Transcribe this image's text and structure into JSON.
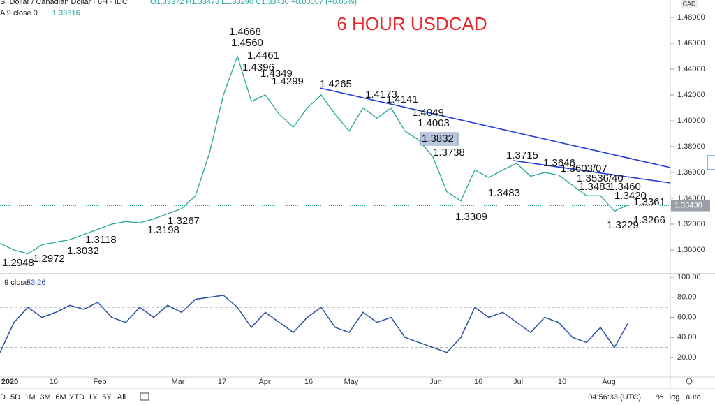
{
  "header": {
    "symbol": "S. Dollar / Canadian Dollar · 6H · IDC",
    "ohlc": "O1.33372 H1.33473 L1.33290 C1.33430 +0.00067 (+0.05%)",
    "indicator": "A 9 close 0",
    "indicator_value": "1.33316",
    "currency": "CAD"
  },
  "chart_data": [
    {
      "type": "line",
      "title": "6 HOUR USDCAD",
      "series": [
        {
          "color": "#26a69a",
          "values": [
            1.305,
            1.3,
            1.297,
            1.304,
            1.306,
            1.308,
            1.312,
            1.316,
            1.32,
            1.322,
            1.321,
            1.324,
            1.328,
            1.332,
            1.342,
            1.375,
            1.42,
            1.45,
            1.415,
            1.42,
            1.405,
            1.395,
            1.41,
            1.42,
            1.405,
            1.392,
            1.41,
            1.402,
            1.41,
            1.392,
            1.385,
            1.372,
            1.345,
            1.338,
            1.362,
            1.356,
            1.362,
            1.367,
            1.357,
            1.36,
            1.358,
            1.35,
            1.342,
            1.342,
            1.33,
            1.335
          ]
        }
      ],
      "ylim": [
        1.2816,
        1.4935
      ],
      "yticks": [
        {
          "value": 1.3,
          "label": "1.30000"
        },
        {
          "value": 1.32,
          "label": "1.32000"
        },
        {
          "value": 1.34,
          "label": "1.34000"
        },
        {
          "value": 1.36,
          "label": "1.36000"
        },
        {
          "value": 1.38,
          "label": "1.38000"
        },
        {
          "value": 1.4,
          "label": "1.40000"
        },
        {
          "value": 1.42,
          "label": "1.42000"
        },
        {
          "value": 1.44,
          "label": "1.44000"
        },
        {
          "value": 1.46,
          "label": "1.46000"
        },
        {
          "value": 1.48,
          "label": "1.48000"
        }
      ],
      "last_price": {
        "value": 1.3343,
        "label": "1.33430"
      },
      "trendline_color": "#1f3ddb",
      "annotations": [
        "1.4668",
        "1.4560",
        "1.4461",
        "1.4396",
        "1.4349",
        "1.4299",
        "1.4265",
        "1.4173",
        "1.4141",
        "1.4049",
        "1.4003",
        "1.3832",
        "1.3738",
        "1.3715",
        "1.3646",
        "1.3603/07",
        "1.3536/40",
        "1.3483",
        "1.3483",
        "1.3460",
        "1.3420",
        "1.3361",
        "1.3309",
        "1.3229",
        "1.3266",
        "1.3267",
        "1.3198",
        "1.3118",
        "1.3032",
        "1.2972",
        "1.2948"
      ]
    },
    {
      "type": "line",
      "label": "I 9 close",
      "last": 53.26,
      "series": [
        {
          "color": "#2c4fa3",
          "values": [
            25,
            55,
            70,
            60,
            65,
            72,
            68,
            75,
            60,
            55,
            70,
            60,
            72,
            65,
            78,
            80,
            82,
            70,
            50,
            65,
            55,
            45,
            60,
            70,
            50,
            45,
            65,
            55,
            60,
            40,
            35,
            30,
            25,
            40,
            70,
            60,
            65,
            55,
            45,
            60,
            55,
            40,
            35,
            50,
            30,
            55
          ]
        }
      ],
      "ylim": [
        0.5,
        103.5
      ],
      "yticks": [
        {
          "value": 20,
          "label": "20.00"
        },
        {
          "value": 40,
          "label": "40.00"
        },
        {
          "value": 60,
          "label": "60.00"
        },
        {
          "value": 80,
          "label": "80.00"
        },
        {
          "value": 100,
          "label": "100.00"
        }
      ],
      "bands": [
        30,
        70
      ]
    }
  ],
  "time_axis": [
    "2020",
    "16",
    "Feb",
    "Mar",
    "17",
    "Apr",
    "16",
    "May",
    "Jun",
    "16",
    "Jul",
    "16",
    "Aug"
  ],
  "toolbar": {
    "ranges": [
      "D",
      "5D",
      "1M",
      "3M",
      "6M",
      "YTD",
      "1Y",
      "5Y",
      "All"
    ],
    "clock": "04:56:33 (UTC)",
    "options": [
      "%",
      "log",
      "auto"
    ]
  }
}
